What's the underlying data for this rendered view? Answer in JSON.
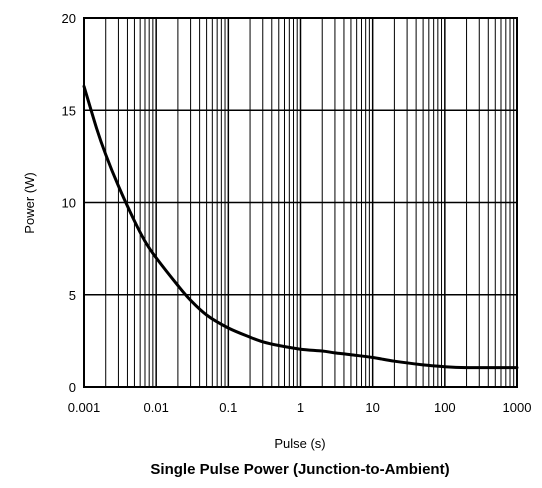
{
  "chart_data": {
    "type": "line",
    "title": "Single Pulse Power (Junction-to-Ambient)",
    "xlabel": "Pulse (s)",
    "ylabel": "Power (W)",
    "xscale": "log",
    "xlim": [
      0.001,
      1000
    ],
    "ylim": [
      0,
      20
    ],
    "grid": true,
    "x_ticks": [
      "0.001",
      "0.01",
      "0.1",
      "1",
      "10",
      "100",
      "1000"
    ],
    "y_ticks": [
      "0",
      "5",
      "10",
      "15",
      "20"
    ],
    "series": [
      {
        "color": "#000000",
        "x": [
          0.001,
          0.0015,
          0.002,
          0.003,
          0.005,
          0.007,
          0.01,
          0.02,
          0.03,
          0.05,
          0.1,
          0.2,
          0.3,
          0.5,
          1,
          2,
          3,
          5,
          10,
          20,
          50,
          100,
          200,
          500,
          1000
        ],
        "y": [
          16.3,
          14.0,
          12.6,
          10.9,
          9.0,
          7.9,
          7.0,
          5.5,
          4.7,
          3.9,
          3.2,
          2.7,
          2.45,
          2.25,
          2.05,
          1.95,
          1.85,
          1.75,
          1.6,
          1.4,
          1.2,
          1.1,
          1.05,
          1.05,
          1.05
        ]
      }
    ]
  }
}
